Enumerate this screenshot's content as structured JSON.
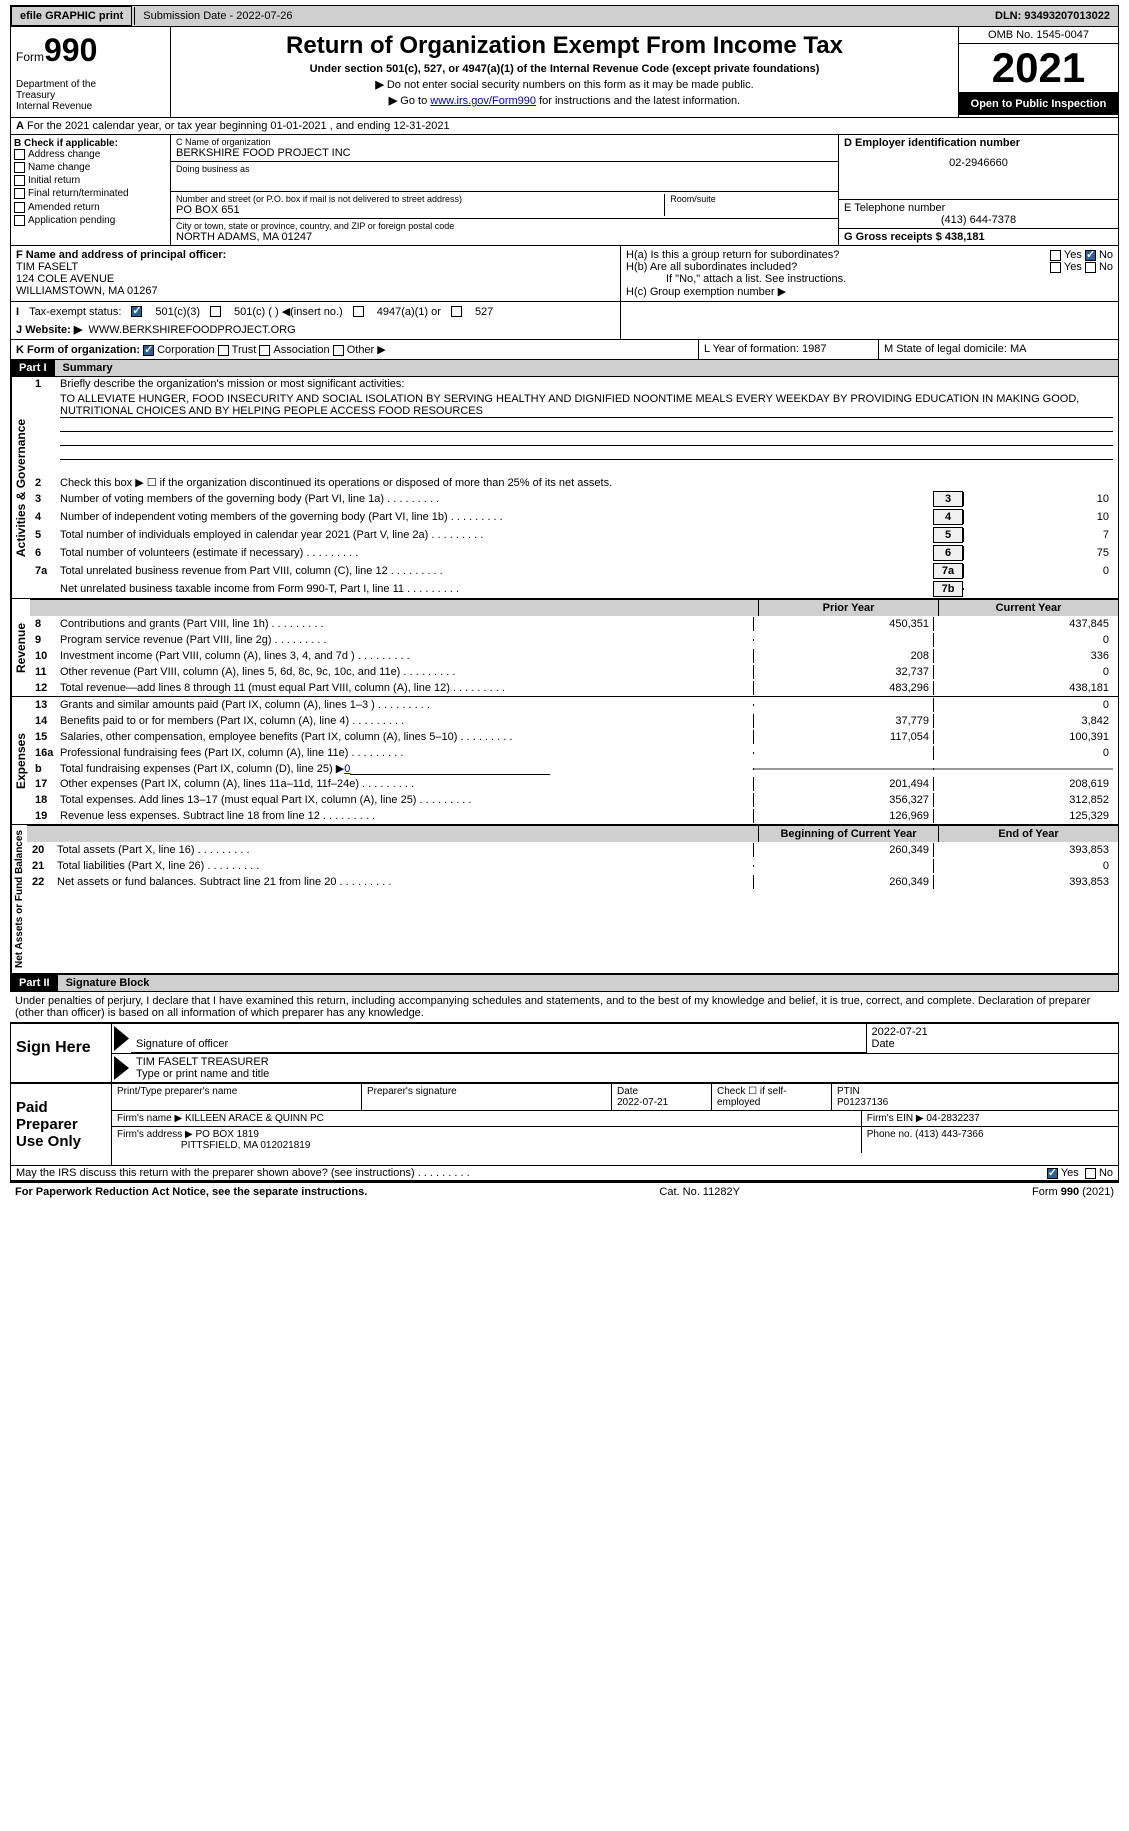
{
  "topbar": {
    "efile_label": "efile GRAPHIC print",
    "submission_label": "Submission Date - 2022-07-26",
    "dln_label": "DLN: 93493207013022"
  },
  "header": {
    "form_prefix": "Form",
    "form_number": "990",
    "dept": "Department of the Treasury\nInternal Revenue Service",
    "title": "Return of Organization Exempt From Income Tax",
    "subtitle": "Under section 501(c), 527, or 4947(a)(1) of the Internal Revenue Code (except private foundations)",
    "note1": "Do not enter social security numbers on this form as it may be made public.",
    "note2_prefix": "Go to ",
    "note2_link": "www.irs.gov/Form990",
    "note2_suffix": " for instructions and the latest information.",
    "omb": "OMB No. 1545-0047",
    "year": "2021",
    "open": "Open to Public Inspection"
  },
  "rowA": {
    "text": "For the 2021 calendar year, or tax year beginning 01-01-2021   , and ending 12-31-2021"
  },
  "checkB": {
    "header": "B Check if applicable:",
    "items": [
      "Address change",
      "Name change",
      "Initial return",
      "Final return/terminated",
      "Amended return",
      "Application pending"
    ]
  },
  "org": {
    "name_lbl": "C Name of organization",
    "name": "BERKSHIRE FOOD PROJECT INC",
    "dba_lbl": "Doing business as",
    "street_lbl": "Number and street (or P.O. box if mail is not delivered to street address)",
    "room_lbl": "Room/suite",
    "street": "PO BOX 651",
    "city_lbl": "City or town, state or province, country, and ZIP or foreign postal code",
    "city": "NORTH ADAMS, MA  01247"
  },
  "colD": {
    "ein_lbl": "D Employer identification number",
    "ein": "02-2946660",
    "phone_lbl": "E Telephone number",
    "phone": "(413) 644-7378",
    "gross_lbl": "G Gross receipts $ 438,181"
  },
  "officer": {
    "lbl": "F  Name and address of principal officer:",
    "name": "TIM FASELT",
    "addr1": "124 COLE AVENUE",
    "addr2": "WILLIAMSTOWN, MA  01267"
  },
  "sectionH": {
    "ha": "H(a)  Is this a group return for subordinates?",
    "hb": "H(b)  Are all subordinates included?",
    "hb_note": "If \"No,\" attach a list. See instructions.",
    "hc": "H(c)  Group exemption number ▶",
    "yes": "Yes",
    "no": "No"
  },
  "taxexempt": {
    "lbl": "Tax-exempt status:",
    "opt1": "501(c)(3)",
    "opt2": "501(c) (  ) ◀(insert no.)",
    "opt3": "4947(a)(1) or",
    "opt4": "527"
  },
  "website": {
    "lbl": "Website: ▶",
    "val": "WWW.BERKSHIREFOODPROJECT.ORG"
  },
  "korg": {
    "lbl": "K Form of organization:",
    "corp": "Corporation",
    "trust": "Trust",
    "assoc": "Association",
    "other": "Other ▶",
    "year_lbl": "L Year of formation: 1987",
    "state_lbl": "M State of legal domicile: MA"
  },
  "part1": {
    "hdr": "Part I",
    "title": "Summary"
  },
  "activities": {
    "tab": "Activities & Governance",
    "line1_lbl": "Briefly describe the organization's mission or most significant activities:",
    "mission": "TO ALLEVIATE HUNGER, FOOD INSECURITY AND SOCIAL ISOLATION BY SERVING HEALTHY AND DIGNIFIED NOONTIME MEALS EVERY WEEKDAY BY PROVIDING EDUCATION IN MAKING GOOD, NUTRITIONAL CHOICES AND BY HELPING PEOPLE ACCESS FOOD RESOURCES",
    "line2": "Check this box ▶ ☐  if the organization discontinued its operations or disposed of more than 25% of its net assets.",
    "line3": "Number of voting members of the governing body (Part VI, line 1a)",
    "line4": "Number of independent voting members of the governing body (Part VI, line 1b)",
    "line5": "Total number of individuals employed in calendar year 2021 (Part V, line 2a)",
    "line6": "Total number of volunteers (estimate if necessary)",
    "line7a": "Total unrelated business revenue from Part VIII, column (C), line 12",
    "line7b": "Net unrelated business taxable income from Form 990-T, Part I, line 11",
    "v3": "10",
    "v4": "10",
    "v5": "7",
    "v6": "75",
    "v7a": "0",
    "v7b": ""
  },
  "revenue": {
    "tab": "Revenue",
    "hdr_prior": "Prior Year",
    "hdr_current": "Current Year",
    "lines": [
      {
        "n": "8",
        "t": "Contributions and grants (Part VIII, line 1h)",
        "p": "450,351",
        "c": "437,845"
      },
      {
        "n": "9",
        "t": "Program service revenue (Part VIII, line 2g)",
        "p": "",
        "c": "0"
      },
      {
        "n": "10",
        "t": "Investment income (Part VIII, column (A), lines 3, 4, and 7d )",
        "p": "208",
        "c": "336"
      },
      {
        "n": "11",
        "t": "Other revenue (Part VIII, column (A), lines 5, 6d, 8c, 9c, 10c, and 11e)",
        "p": "32,737",
        "c": "0"
      },
      {
        "n": "12",
        "t": "Total revenue—add lines 8 through 11 (must equal Part VIII, column (A), line 12)",
        "p": "483,296",
        "c": "438,181"
      }
    ]
  },
  "expenses": {
    "tab": "Expenses",
    "lines_top": [
      {
        "n": "13",
        "t": "Grants and similar amounts paid (Part IX, column (A), lines 1–3 )",
        "p": "",
        "c": "0"
      },
      {
        "n": "14",
        "t": "Benefits paid to or for members (Part IX, column (A), line 4)",
        "p": "37,779",
        "c": "3,842"
      },
      {
        "n": "15",
        "t": "Salaries, other compensation, employee benefits (Part IX, column (A), lines 5–10)",
        "p": "117,054",
        "c": "100,391"
      },
      {
        "n": "16a",
        "t": "Professional fundraising fees (Part IX, column (A), line 11e)",
        "p": "",
        "c": "0"
      }
    ],
    "line_b": "Total fundraising expenses (Part IX, column (D), line 25) ▶",
    "line_b_val": "0",
    "lines_bot": [
      {
        "n": "17",
        "t": "Other expenses (Part IX, column (A), lines 11a–11d, 11f–24e)",
        "p": "201,494",
        "c": "208,619"
      },
      {
        "n": "18",
        "t": "Total expenses. Add lines 13–17 (must equal Part IX, column (A), line 25)",
        "p": "356,327",
        "c": "312,852"
      },
      {
        "n": "19",
        "t": "Revenue less expenses. Subtract line 18 from line 12",
        "p": "126,969",
        "c": "125,329"
      }
    ]
  },
  "netassets": {
    "tab": "Net Assets or Fund Balances",
    "hdr_begin": "Beginning of Current Year",
    "hdr_end": "End of Year",
    "lines": [
      {
        "n": "20",
        "t": "Total assets (Part X, line 16)",
        "p": "260,349",
        "c": "393,853"
      },
      {
        "n": "21",
        "t": "Total liabilities (Part X, line 26)",
        "p": "",
        "c": "0"
      },
      {
        "n": "22",
        "t": "Net assets or fund balances. Subtract line 21 from line 20",
        "p": "260,349",
        "c": "393,853"
      }
    ]
  },
  "part2": {
    "hdr": "Part II",
    "title": "Signature Block",
    "decl": "Under penalties of perjury, I declare that I have examined this return, including accompanying schedules and statements, and to the best of my knowledge and belief, it is true, correct, and complete. Declaration of preparer (other than officer) is based on all information of which preparer has any knowledge."
  },
  "sign": {
    "lbl": "Sign Here",
    "sig_lbl": "Signature of officer",
    "date_lbl": "Date",
    "date": "2022-07-21",
    "name": "TIM FASELT  TREASURER",
    "name_lbl": "Type or print name and title"
  },
  "preparer": {
    "lbl": "Paid Preparer Use Only",
    "print_lbl": "Print/Type preparer's name",
    "sig_lbl": "Preparer's signature",
    "date_lbl": "Date",
    "date": "2022-07-21",
    "check_lbl": "Check ☐ if self-employed",
    "ptin_lbl": "PTIN",
    "ptin": "P01237136",
    "firm_name_lbl": "Firm's name    ▶",
    "firm_name": "KILLEEN ARACE & QUINN PC",
    "firm_ein_lbl": "Firm's EIN ▶ 04-2832237",
    "firm_addr_lbl": "Firm's address ▶",
    "firm_addr1": "PO BOX 1819",
    "firm_addr2": "PITTSFIELD, MA  012021819",
    "phone_lbl": "Phone no. (413) 443-7366"
  },
  "discuss": {
    "q": "May the IRS discuss this return with the preparer shown above? (see instructions)",
    "yes": "Yes",
    "no": "No"
  },
  "footer": {
    "left": "For Paperwork Reduction Act Notice, see the separate instructions.",
    "mid": "Cat. No. 11282Y",
    "right": "Form 990 (2021)"
  }
}
